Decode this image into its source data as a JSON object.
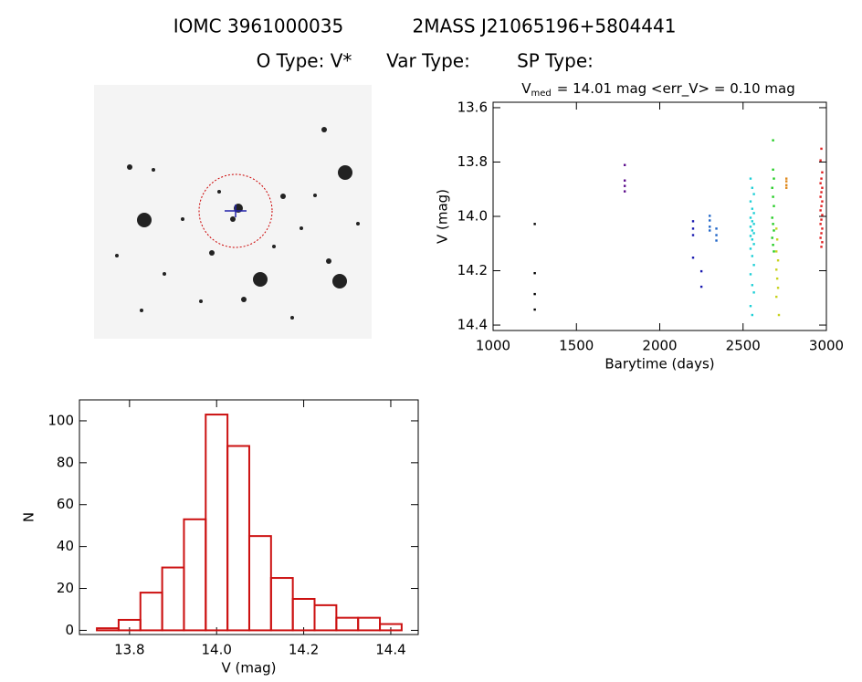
{
  "header": {
    "line1": [
      "IOMC 3961000035",
      "2MASS J21065196+5804441"
    ],
    "line2": [
      "O Type: V*",
      "Var Type:",
      "SP Type:"
    ]
  },
  "chart_data": [
    {
      "type": "scatter",
      "title": [
        "V",
        "med",
        "= 14.01 mag <err_V> = 0.10 mag"
      ],
      "x_label": "Barytime (days)",
      "y_label": "V (mag)",
      "xlim": [
        1000,
        3000
      ],
      "xticks": [
        1000,
        1500,
        2000,
        2500,
        3000
      ],
      "ylim": [
        13.58,
        14.42
      ],
      "y_inverted": true,
      "yticks": [
        13.6,
        13.8,
        {
          "value": 14.0,
          "label": "14.0"
        },
        14.2,
        14.4
      ],
      "series": [
        {
          "color": "#000000",
          "x": [
            1250,
            1250,
            1250,
            1250
          ],
          "values": [
            14.028,
            14.209,
            14.286,
            14.343
          ]
        },
        {
          "color": "#5a0a8a",
          "x": [
            1790,
            1790,
            1790,
            1790
          ],
          "values": [
            13.811,
            13.868,
            13.888,
            13.908
          ]
        },
        {
          "color": "#1a1ab0",
          "x": [
            2200,
            2200,
            2200,
            2200,
            2250,
            2250
          ],
          "values": [
            14.018,
            14.045,
            14.069,
            14.152,
            14.202,
            14.259
          ]
        },
        {
          "color": "#1e64c8",
          "x": [
            2300,
            2300,
            2300,
            2300,
            2340,
            2340,
            2340
          ],
          "values": [
            13.998,
            14.015,
            14.038,
            14.052,
            14.045,
            14.069,
            14.089
          ]
        },
        {
          "color": "#1ecfd6",
          "x": [
            2545,
            2555,
            2565,
            2545,
            2555,
            2565,
            2545,
            2555,
            2565,
            2545,
            2555,
            2565,
            2545,
            2555,
            2565,
            2545,
            2555,
            2565,
            2545,
            2555,
            2565,
            2545,
            2555
          ],
          "values": [
            13.861,
            13.895,
            13.918,
            13.945,
            13.972,
            13.988,
            14.005,
            14.018,
            14.028,
            14.038,
            14.052,
            14.062,
            14.072,
            14.085,
            14.102,
            14.119,
            14.146,
            14.179,
            14.213,
            14.253,
            14.28,
            14.33,
            14.363
          ]
        },
        {
          "color": "#22cc22",
          "x": [
            2680,
            2680,
            2685,
            2675,
            2680,
            2685,
            2675,
            2680,
            2685,
            2675,
            2680,
            2685
          ],
          "values": [
            13.72,
            13.828,
            13.861,
            13.895,
            13.928,
            13.962,
            14.005,
            14.028,
            14.052,
            14.079,
            14.105,
            14.129
          ]
        },
        {
          "color": "#c8d21e",
          "x": [
            2700,
            2705,
            2700,
            2710,
            2700,
            2705,
            2710,
            2700,
            2715
          ],
          "values": [
            14.045,
            14.085,
            14.129,
            14.162,
            14.196,
            14.229,
            14.263,
            14.296,
            14.363
          ]
        },
        {
          "color": "#e08a1e",
          "x": [
            2760,
            2760,
            2760,
            2760
          ],
          "values": [
            13.861,
            13.871,
            13.885,
            13.895
          ]
        },
        {
          "color": "#e02020",
          "x": [
            2970,
            2965,
            2975,
            2970,
            2965,
            2975,
            2970,
            2965,
            2975,
            2970,
            2965,
            2975,
            2970,
            2965,
            2975,
            2970,
            2965,
            2975,
            2970
          ],
          "values": [
            13.751,
            13.794,
            13.838,
            13.861,
            13.878,
            13.895,
            13.911,
            13.928,
            13.945,
            13.962,
            13.978,
            13.995,
            14.012,
            14.028,
            14.045,
            14.062,
            14.079,
            14.095,
            14.112
          ]
        }
      ]
    },
    {
      "type": "histogram",
      "color": "#cc1111",
      "x_label": "V (mag)",
      "y_label": "N",
      "bins": [
        13.725,
        13.775,
        13.825,
        13.875,
        13.925,
        13.975,
        14.025,
        14.075,
        14.125,
        14.175,
        14.225,
        14.275,
        14.325,
        14.375,
        14.425
      ],
      "counts": [
        1,
        5,
        18,
        30,
        53,
        103,
        88,
        45,
        25,
        15,
        12,
        6,
        6,
        3,
        1
      ],
      "xlim": [
        13.685,
        14.463
      ],
      "xticks": [
        13.8,
        {
          "value": 14.0,
          "label": "14.0"
        },
        14.2,
        14.4
      ],
      "ylim": [
        -2,
        110
      ],
      "yticks": [
        0,
        20,
        40,
        60,
        80,
        100
      ]
    }
  ]
}
